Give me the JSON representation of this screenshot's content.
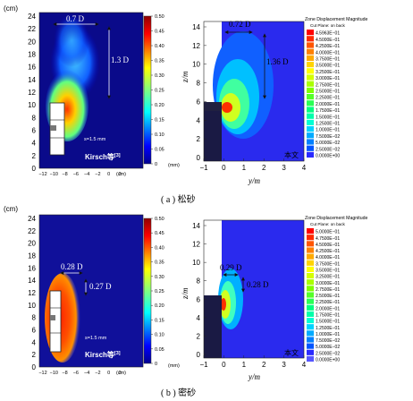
{
  "panels": [
    {
      "caption": "( a ) 松砂",
      "left": {
        "unit_y": "(cm)",
        "yticks": [
          "0",
          "2",
          "4",
          "6",
          "8",
          "10",
          "12",
          "14",
          "16",
          "18",
          "20",
          "22",
          "24"
        ],
        "xticks": [
          "−12",
          "−10",
          "−8",
          "−6",
          "−4",
          "−2",
          "0",
          "2"
        ],
        "unit_x": "(cm)",
        "dim_w": "0.7 D",
        "dim_h": "1.3 D",
        "scale_note": "s=1.5 mm",
        "label": "Kirsch等",
        "label_ref": "[3]",
        "colorbar_ticks": [
          "0.50",
          "0.45",
          "0.40",
          "0.35",
          "0.30",
          "0.25",
          "0.20",
          "0.15",
          "0.10",
          "0.05",
          "0"
        ],
        "colorbar_unit": "(mm)"
      },
      "right": {
        "ylabel": "z/m",
        "xlabel": "y/m",
        "yticks": [
          "0",
          "2",
          "4",
          "6",
          "8",
          "10",
          "12",
          "14"
        ],
        "xticks": [
          "−1",
          "0",
          "1",
          "2",
          "3",
          "4"
        ],
        "dim_w": "0.72 D",
        "dim_h": "1.36 D",
        "label": "本文",
        "legend_title": "Zone Displacement Magnitude",
        "legend_sub": "Cut Plane: on back",
        "legend_values": [
          "4.5963E−01",
          "4.5000E−01",
          "4.2500E−01",
          "4.0000E−01",
          "3.7500E−01",
          "3.5000E−01",
          "3.2500E−01",
          "3.0000E−01",
          "2.7500E−01",
          "2.5000E−01",
          "2.2500E−01",
          "2.0000E−01",
          "1.7500E−01",
          "1.5000E−01",
          "1.2500E−01",
          "1.0000E−01",
          "7.5000E−02",
          "5.0000E−02",
          "2.5000E−02",
          "0.0000E+00"
        ]
      }
    },
    {
      "caption": "( b ) 密砂",
      "left": {
        "unit_y": "(cm)",
        "yticks": [
          "0",
          "2",
          "4",
          "6",
          "8",
          "10",
          "12",
          "14",
          "16",
          "18",
          "20",
          "22",
          "24"
        ],
        "xticks": [
          "−12",
          "−10",
          "−8",
          "−6",
          "−4",
          "−2",
          "0",
          "2"
        ],
        "unit_x": "(cm)",
        "dim_w": "0.28 D",
        "dim_h": "0.27 D",
        "scale_note": "s=1.5 mm",
        "label": "Kirsch等",
        "label_ref": "[3]",
        "colorbar_ticks": [
          "0.50",
          "0.45",
          "0.40",
          "0.35",
          "0.30",
          "0.25",
          "0.20",
          "0.15",
          "0.10",
          "0.05",
          "0"
        ],
        "colorbar_unit": "(mm)"
      },
      "right": {
        "ylabel": "z/m",
        "xlabel": "y/m",
        "yticks": [
          "0",
          "2",
          "4",
          "6",
          "8",
          "10",
          "12",
          "14"
        ],
        "xticks": [
          "−1",
          "0",
          "1",
          "2",
          "3",
          "4"
        ],
        "dim_w": "0.29 D",
        "dim_h": "0.28 D",
        "label": "本文",
        "legend_title": "Zone Displacement Magnitude",
        "legend_sub": "Cut Plane: on back",
        "legend_values": [
          "5.0000E−01",
          "4.7500E−01",
          "4.5000E−01",
          "4.2500E−01",
          "4.0000E−01",
          "3.7500E−01",
          "3.5000E−01",
          "3.2500E−01",
          "3.0000E−01",
          "2.7500E−01",
          "2.5000E−01",
          "2.2500E−01",
          "2.0000E−01",
          "1.7500E−01",
          "1.5000E−01",
          "1.2500E−01",
          "1.0000E−01",
          "7.5000E−02",
          "5.0000E−02",
          "2.5000E−02",
          "0.0000E+00"
        ]
      }
    }
  ],
  "colors": {
    "jet": [
      "#00008f",
      "#0000ff",
      "#0060ff",
      "#00c0ff",
      "#20ffe0",
      "#80ff80",
      "#e0ff20",
      "#ffc000",
      "#ff6000",
      "#ff0000",
      "#a00000"
    ],
    "legend_palette": [
      "#ff0000",
      "#ff2a00",
      "#ff5500",
      "#ff8000",
      "#ffaa00",
      "#ffd400",
      "#ffff00",
      "#d4ff00",
      "#aaff00",
      "#80ff00",
      "#55ff2a",
      "#2aff55",
      "#00ff80",
      "#00ffaa",
      "#00ffd4",
      "#00d4ff",
      "#00aaff",
      "#0080ff",
      "#0055ff",
      "#2a2aff",
      "#5555ff"
    ]
  }
}
